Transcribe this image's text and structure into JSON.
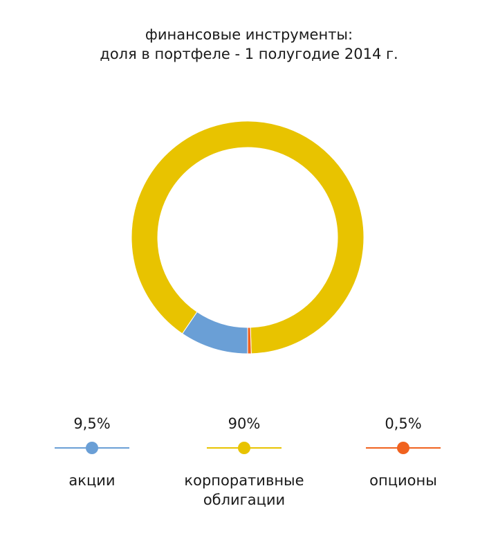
{
  "chart_data": {
    "type": "pie",
    "donut": true,
    "title_line1": "финансовые инструменты:",
    "title_line2": "доля в портфеле - 1 полугодие 2014 г.",
    "slices": [
      {
        "label": "акции",
        "value_label": "9,5%",
        "value": 9.5,
        "color": "#6A9FD6"
      },
      {
        "label": "корпоративные облигации",
        "label_line1": "корпоративные",
        "label_line2": "облигации",
        "value_label": "90%",
        "value": 90,
        "color": "#E8C300"
      },
      {
        "label": "опционы",
        "value_label": "0,5%",
        "value": 0.5,
        "color": "#F0621F"
      }
    ],
    "legend_position": "bottom"
  }
}
